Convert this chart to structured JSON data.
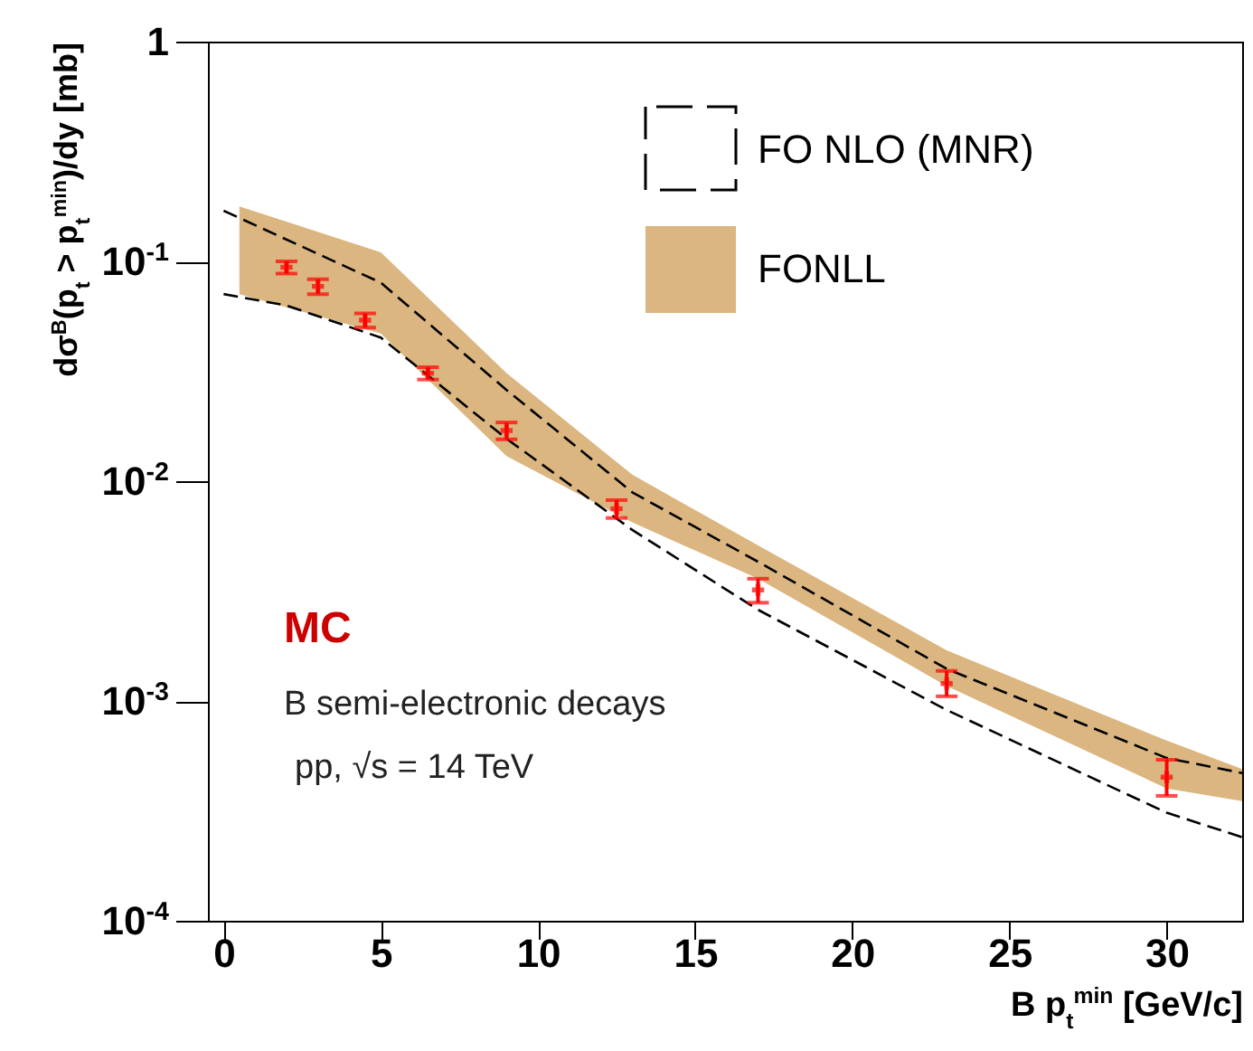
{
  "chart_data": {
    "type": "line",
    "xlabel": "B p$_{t}$$^{min}$ [GeV/c]",
    "ylabel": "dσ$^{B}$(p$_{t}$ > p$_{t}$$^{min}$)/dy [mb]",
    "xlim": [
      -0.5,
      32.4
    ],
    "xticks": [
      0,
      5,
      10,
      15,
      20,
      25,
      30
    ],
    "ylim": [
      0.0001,
      1
    ],
    "yticks": [
      {
        "value": 0.0001,
        "label": "10$^{-4}$"
      },
      {
        "value": 0.001,
        "label": "10$^{-3}$"
      },
      {
        "value": 0.01,
        "label": "10$^{-2}$"
      },
      {
        "value": 0.1,
        "label": "10$^{-1}$"
      },
      1
    ],
    "log": "y",
    "grid": false,
    "legend": "top right",
    "annotations": [
      "MC",
      "B semi-electronic decays",
      "pp, √s = 14 TeV"
    ],
    "series": [
      {
        "name": "FO NLO (MNR)",
        "line_style": "dashed",
        "color": "#000000",
        "x": [
          0,
          5,
          9,
          13,
          17,
          23,
          30,
          32.4
        ],
        "values": [
          0.17,
          0.08,
          0.026,
          0.0089,
          0.0043,
          0.0014,
          0.00055,
          0.00047
        ]
      },
      {
        "name": "FONLL",
        "type": "area",
        "color": "#dbb680",
        "x": [
          0.5,
          5,
          9,
          13,
          17,
          23,
          30,
          32.4
        ],
        "values": [
          null,
          null,
          null,
          null,
          null,
          null,
          null,
          null
        ],
        "lower": [
          0.071,
          0.047,
          0.013,
          0.0065,
          0.0036,
          0.00117,
          0.0004,
          0.00035
        ],
        "upper": [
          0.178,
          0.11,
          0.031,
          0.0107,
          0.0051,
          0.0017,
          0.00066,
          0.00049
        ]
      },
      {
        "type": "line",
        "line_style": "dashed",
        "color": "#000000",
        "x": [
          0,
          2,
          5,
          9,
          13,
          17,
          23,
          30,
          32.4
        ],
        "values": [
          0.071,
          0.063,
          0.045,
          0.0156,
          0.006,
          0.0026,
          0.00091,
          0.00031,
          0.00024
        ]
      },
      {
        "type": "scatter",
        "marker": "cross",
        "color": "#ff0000",
        "x": [
          2,
          3,
          4.5,
          6.5,
          9,
          12.5,
          17,
          23,
          30
        ],
        "values": [
          0.094,
          0.077,
          0.054,
          0.031,
          0.017,
          0.0075,
          0.0032,
          0.0012,
          0.00045
        ],
        "errors": [
          [
            0.088,
            0.1
          ],
          [
            0.071,
            0.083
          ],
          [
            0.05,
            0.058
          ],
          [
            0.029,
            0.033
          ],
          [
            0.0155,
            0.0185
          ],
          [
            0.0068,
            0.0082
          ],
          [
            0.0028,
            0.0036
          ],
          [
            0.00105,
            0.00137
          ],
          [
            0.00037,
            0.00054
          ]
        ]
      }
    ]
  }
}
